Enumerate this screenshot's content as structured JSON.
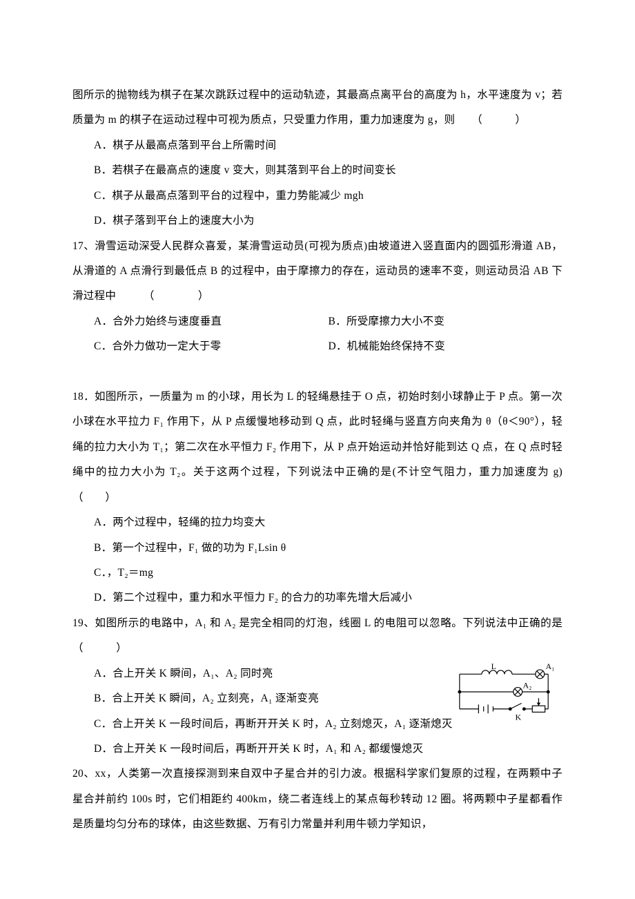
{
  "p1": "图所示的抛物线为棋子在某次跳跃过程中的运动轨迹，其最高点离平台的高度为 h，水平速度为 v；若质量为 m 的棋子在运动过程中可视为质点，只受重力作用，重力加速度为 g，则　　（　　　）",
  "q16": {
    "a": "A．棋子从最高点落到平台上所需时间",
    "b": "B．若棋子在最高点的速度 v 变大，则其落到平台上的时间变长",
    "c": "C．棋子从最高点落到平台的过程中，重力势能减少 mgh",
    "d": "D．棋子落到平台上的速度大小为"
  },
  "q17": {
    "stem1": "17、滑雪运动深受人民群众喜爱，某滑雪运动员(可视为质点)由坡道进入竖直面内的圆弧形滑道 AB，从滑道的 A 点滑行到最低点 B 的过程中，由于摩擦力的存在，运动员的速率不变，则运动员沿 AB 下滑过程中　　　（　　　　）",
    "a": "A．合外力始终与速度垂直",
    "b": "B．所受摩擦力大小不变",
    "c": "C．合外力做功一定大于零",
    "d": "D．机械能始终保持不变"
  },
  "q18": {
    "stem": "18．如图所示，一质量为 m 的小球，用长为 L 的轻绳悬挂于 O 点，初始时刻小球静止于 P 点。第一次小球在水平拉力 F₁ 作用下，从 P 点缓慢地移动到 Q 点，此时轻绳与竖直方向夹角为 θ（θ＜90°），轻绳的拉力大小为 T₁；第二次在水平恒力 F₂ 作用下，从 P 点开始运动并恰好能到达 Q 点，在 Q 点时轻绳中的拉力大小为 T₂。关于这两个过程，下列说法中正确的是(不计空气阻力，重力加速度为 g)（　　）",
    "a": "A．两个过程中，轻绳的拉力均变大",
    "b": "B．第一个过程中，F₁ 做的功为 F₁Lsin θ",
    "c": "C．，T₂＝mg",
    "d": "D．第二个过程中，重力和水平恒力 F₂ 的合力的功率先增大后减小"
  },
  "q19": {
    "stem": "19、如图所示的电路中，A₁ 和 A₂ 是完全相同的灯泡，线圈 L 的电阻可以忽略。下列说法中正确的是　（　　　）",
    "a": "A．合上开关 K 瞬间，A₁、A₂ 同时亮",
    "b": "B．合上开关 K 瞬间，A₂ 立刻亮，A₁ 逐渐变亮",
    "c": "C．合上开关 K 一段时间后，再断开开关 K 时，A₂ 立刻熄灭，A₁ 逐渐熄灭",
    "d": "D．合上开关 K 一段时间后，再断开开关 K 时，A₁ 和 A₂ 都缓慢熄灭"
  },
  "q20": {
    "stem": "20、xx，人类第一次直接探测到来自双中子星合并的引力波。根据科学家们复原的过程，在两颗中子星合并前约 100s 时，它们相距约 400km，绕二者连线上的某点每秒转动 12 圈。将两颗中子星都看作是质量均匀分布的球体，由这些数据、万有引力常量并利用牛顿力学知识，"
  },
  "diagram": {
    "labels": {
      "L": "L",
      "A1": "A₁",
      "A2": "A₂",
      "K": "K"
    },
    "stroke": "#000000",
    "stroke_width": 1.3,
    "font_size": 13
  }
}
